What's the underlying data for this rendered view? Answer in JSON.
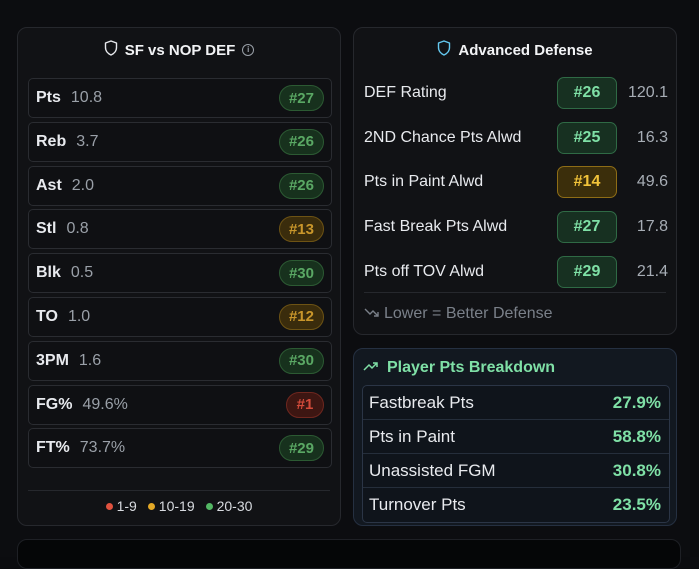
{
  "matchup": {
    "title": "SF vs NOP DEF",
    "stats": [
      {
        "name": "Pts",
        "value": "10.8",
        "rank": "#27",
        "tier": "green"
      },
      {
        "name": "Reb",
        "value": "3.7",
        "rank": "#26",
        "tier": "green"
      },
      {
        "name": "Ast",
        "value": "2.0",
        "rank": "#26",
        "tier": "green"
      },
      {
        "name": "Stl",
        "value": "0.8",
        "rank": "#13",
        "tier": "yellow"
      },
      {
        "name": "Blk",
        "value": "0.5",
        "rank": "#30",
        "tier": "green"
      },
      {
        "name": "TO",
        "value": "1.0",
        "rank": "#12",
        "tier": "yellow"
      },
      {
        "name": "3PM",
        "value": "1.6",
        "rank": "#30",
        "tier": "green"
      },
      {
        "name": "FG%",
        "value": "49.6%",
        "rank": "#1",
        "tier": "red"
      },
      {
        "name": "FT%",
        "value": "73.7%",
        "rank": "#29",
        "tier": "green"
      }
    ],
    "legend": [
      {
        "label": "1-9",
        "color": "#e0523f"
      },
      {
        "label": "10-19",
        "color": "#e3a826"
      },
      {
        "label": "20-30",
        "color": "#53b764"
      }
    ]
  },
  "advanced": {
    "title": "Advanced Defense",
    "rows": [
      {
        "name": "DEF Rating",
        "rank": "#26",
        "tier": "green",
        "value": "120.1"
      },
      {
        "name": "2ND Chance Pts Alwd",
        "rank": "#25",
        "tier": "green",
        "value": "16.3"
      },
      {
        "name": "Pts in Paint Alwd",
        "rank": "#14",
        "tier": "yellow",
        "value": "49.6"
      },
      {
        "name": "Fast Break Pts Alwd",
        "rank": "#27",
        "tier": "green",
        "value": "17.8"
      },
      {
        "name": "Pts off TOV Alwd",
        "rank": "#29",
        "tier": "green",
        "value": "21.4"
      }
    ],
    "note": "Lower = Better Defense"
  },
  "breakdown": {
    "title": "Player Pts Breakdown",
    "rows": [
      {
        "name": "Fastbreak Pts",
        "value": "27.9%"
      },
      {
        "name": "Pts in Paint",
        "value": "58.8%"
      },
      {
        "name": "Unassisted FGM",
        "value": "30.8%"
      },
      {
        "name": "Turnover Pts",
        "value": "23.5%"
      }
    ]
  },
  "icons": {
    "matchup_title": "shield-icon",
    "advanced_title": "shield-icon",
    "info": "info-icon",
    "note": "trending-down-icon",
    "breakdown_title": "trending-up-icon"
  },
  "colors": {
    "green": "#7fe0a6",
    "yellow": "#f1c33a",
    "red": "#d24a3a"
  }
}
